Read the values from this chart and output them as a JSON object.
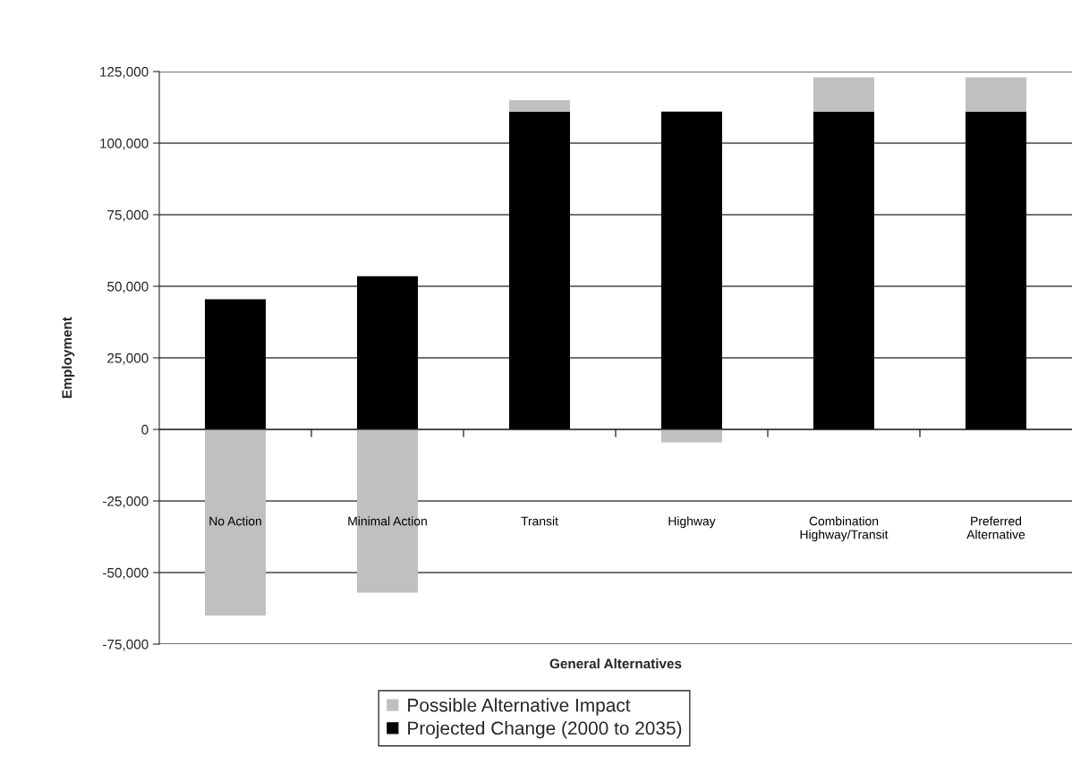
{
  "chart_data": {
    "type": "bar",
    "stacked": true,
    "xlabel": "General Alternatives",
    "ylabel": "Employment",
    "categories": [
      "No Action",
      "Minimal Action",
      "Transit",
      "Highway",
      "Combination\nHighway/Transit",
      "Preferred\nAlternative"
    ],
    "series": [
      {
        "name": "Projected Change (2000 to 2035)",
        "color": "#000000",
        "values": [
          45500,
          53500,
          111000,
          111000,
          111000,
          111000
        ]
      },
      {
        "name": "Possible Alternative Impact",
        "color": "#c0c0c0",
        "values": [
          -65000,
          -57000,
          4000,
          -4500,
          12000,
          12000
        ]
      }
    ],
    "ylim": [
      -75000,
      125000
    ],
    "yticks": [
      {
        "value": -75000,
        "label": "-75,000"
      },
      {
        "value": -50000,
        "label": "-50,000"
      },
      {
        "value": -25000,
        "label": "-25,000"
      },
      0,
      {
        "value": 25000,
        "label": "25,000"
      },
      {
        "value": 50000,
        "label": "50,000"
      },
      {
        "value": 75000,
        "label": "75,000"
      },
      {
        "value": 100000,
        "label": "100,000"
      },
      {
        "value": 125000,
        "label": "125,000"
      }
    ],
    "grid": "y",
    "legend": "bottom"
  }
}
